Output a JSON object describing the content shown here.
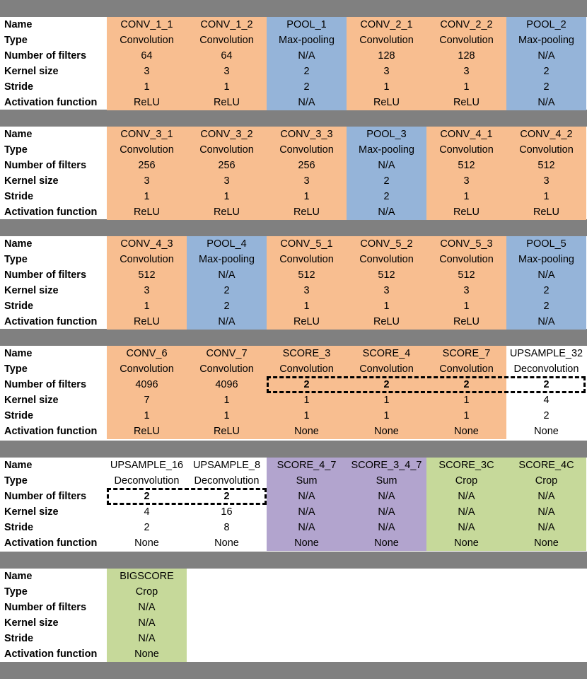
{
  "row_labels": [
    "Name",
    "Type",
    "Number of filters",
    "Kernel size",
    "Stride",
    "Activation function"
  ],
  "blocks": [
    {
      "layers": [
        {
          "name": "CONV_1_1",
          "type": "Convolution",
          "filters": "64",
          "kernel": "3",
          "stride": "1",
          "activation": "ReLU",
          "color": "conv"
        },
        {
          "name": "CONV_1_2",
          "type": "Convolution",
          "filters": "64",
          "kernel": "3",
          "stride": "1",
          "activation": "ReLU",
          "color": "conv"
        },
        {
          "name": "POOL_1",
          "type": "Max-pooling",
          "filters": "N/A",
          "kernel": "2",
          "stride": "2",
          "activation": "N/A",
          "color": "pool"
        },
        {
          "name": "CONV_2_1",
          "type": "Convolution",
          "filters": "128",
          "kernel": "3",
          "stride": "1",
          "activation": "ReLU",
          "color": "conv"
        },
        {
          "name": "CONV_2_2",
          "type": "Convolution",
          "filters": "128",
          "kernel": "3",
          "stride": "1",
          "activation": "ReLU",
          "color": "conv"
        },
        {
          "name": "POOL_2",
          "type": "Max-pooling",
          "filters": "N/A",
          "kernel": "2",
          "stride": "2",
          "activation": "N/A",
          "color": "pool"
        }
      ]
    },
    {
      "layers": [
        {
          "name": "CONV_3_1",
          "type": "Convolution",
          "filters": "256",
          "kernel": "3",
          "stride": "1",
          "activation": "ReLU",
          "color": "conv"
        },
        {
          "name": "CONV_3_2",
          "type": "Convolution",
          "filters": "256",
          "kernel": "3",
          "stride": "1",
          "activation": "ReLU",
          "color": "conv"
        },
        {
          "name": "CONV_3_3",
          "type": "Convolution",
          "filters": "256",
          "kernel": "3",
          "stride": "1",
          "activation": "ReLU",
          "color": "conv"
        },
        {
          "name": "POOL_3",
          "type": "Max-pooling",
          "filters": "N/A",
          "kernel": "2",
          "stride": "2",
          "activation": "N/A",
          "color": "pool"
        },
        {
          "name": "CONV_4_1",
          "type": "Convolution",
          "filters": "512",
          "kernel": "3",
          "stride": "1",
          "activation": "ReLU",
          "color": "conv"
        },
        {
          "name": "CONV_4_2",
          "type": "Convolution",
          "filters": "512",
          "kernel": "3",
          "stride": "1",
          "activation": "ReLU",
          "color": "conv"
        }
      ]
    },
    {
      "layers": [
        {
          "name": "CONV_4_3",
          "type": "Convolution",
          "filters": "512",
          "kernel": "3",
          "stride": "1",
          "activation": "ReLU",
          "color": "conv"
        },
        {
          "name": "POOL_4",
          "type": "Max-pooling",
          "filters": "N/A",
          "kernel": "2",
          "stride": "2",
          "activation": "N/A",
          "color": "pool"
        },
        {
          "name": "CONV_5_1",
          "type": "Convolution",
          "filters": "512",
          "kernel": "3",
          "stride": "1",
          "activation": "ReLU",
          "color": "conv"
        },
        {
          "name": "CONV_5_2",
          "type": "Convolution",
          "filters": "512",
          "kernel": "3",
          "stride": "1",
          "activation": "ReLU",
          "color": "conv"
        },
        {
          "name": "CONV_5_3",
          "type": "Convolution",
          "filters": "512",
          "kernel": "3",
          "stride": "1",
          "activation": "ReLU",
          "color": "conv"
        },
        {
          "name": "POOL_5",
          "type": "Max-pooling",
          "filters": "N/A",
          "kernel": "2",
          "stride": "2",
          "activation": "N/A",
          "color": "pool"
        }
      ]
    },
    {
      "layers": [
        {
          "name": "CONV_6",
          "type": "Convolution",
          "filters": "4096",
          "kernel": "7",
          "stride": "1",
          "activation": "ReLU",
          "color": "conv"
        },
        {
          "name": "CONV_7",
          "type": "Convolution",
          "filters": "4096",
          "kernel": "1",
          "stride": "1",
          "activation": "ReLU",
          "color": "conv"
        },
        {
          "name": "SCORE_3",
          "type": "Convolution",
          "filters": "2",
          "kernel": "1",
          "stride": "1",
          "activation": "None",
          "color": "conv",
          "boldFilters": true
        },
        {
          "name": "SCORE_4",
          "type": "Convolution",
          "filters": "2",
          "kernel": "1",
          "stride": "1",
          "activation": "None",
          "color": "conv",
          "boldFilters": true
        },
        {
          "name": "SCORE_7",
          "type": "Convolution",
          "filters": "2",
          "kernel": "1",
          "stride": "1",
          "activation": "None",
          "color": "conv",
          "boldFilters": true
        },
        {
          "name": "UPSAMPLE_32",
          "type": "Deconvolution",
          "filters": "2",
          "kernel": "4",
          "stride": "2",
          "activation": "None",
          "color": "none",
          "boldFilters": true
        }
      ]
    },
    {
      "layers": [
        {
          "name": "UPSAMPLE_16",
          "type": "Deconvolution",
          "filters": "2",
          "kernel": "4",
          "stride": "2",
          "activation": "None",
          "color": "none",
          "boldFilters": true
        },
        {
          "name": "UPSAMPLE_8",
          "type": "Deconvolution",
          "filters": "2",
          "kernel": "16",
          "stride": "8",
          "activation": "None",
          "color": "none",
          "boldFilters": true
        },
        {
          "name": "SCORE_4_7",
          "type": "Sum",
          "filters": "N/A",
          "kernel": "N/A",
          "stride": "N/A",
          "activation": "None",
          "color": "sum"
        },
        {
          "name": "SCORE_3_4_7",
          "type": "Sum",
          "filters": "N/A",
          "kernel": "N/A",
          "stride": "N/A",
          "activation": "None",
          "color": "sum"
        },
        {
          "name": "SCORE_3C",
          "type": "Crop",
          "filters": "N/A",
          "kernel": "N/A",
          "stride": "N/A",
          "activation": "None",
          "color": "crop"
        },
        {
          "name": "SCORE_4C",
          "type": "Crop",
          "filters": "N/A",
          "kernel": "N/A",
          "stride": "N/A",
          "activation": "None",
          "color": "crop"
        }
      ]
    },
    {
      "layers": [
        {
          "name": "BIGSCORE",
          "type": "Crop",
          "filters": "N/A",
          "kernel": "N/A",
          "stride": "N/A",
          "activation": "None",
          "color": "crop"
        }
      ]
    }
  ],
  "colors": {
    "conv": "#f8be90",
    "pool": "#95b4d9",
    "none": "#ffffff",
    "sum": "#b2a4ce",
    "crop": "#c6d99a",
    "separator": "#808080"
  }
}
